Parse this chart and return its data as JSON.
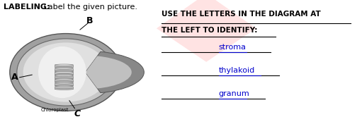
{
  "title_bold": "LABELING:",
  "title_normal": " Label the given picture.",
  "instruction_line1": "USE THE LETTERS IN THE DIAGRAM AT",
  "instruction_line2": "THE LEFT TO IDENTIFY:",
  "labels": [
    "stroma",
    "thylakoid",
    "granum"
  ],
  "letter_A": "A",
  "letter_B": "B",
  "letter_C": "C",
  "chloroplast_label": "Chloroplast",
  "bg_color": "#ffffff",
  "text_color": "#000000",
  "blue_color": "#0000cc",
  "line_color": "#000000"
}
